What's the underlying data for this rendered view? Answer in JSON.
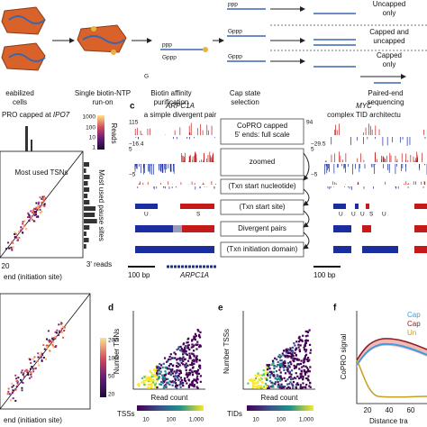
{
  "workflow": {
    "steps": [
      {
        "line1": "eabilized",
        "line2": "cells"
      },
      {
        "line1": "Single biotin-NTP",
        "line2": "run-on"
      },
      {
        "line1": "Biotin affinity",
        "line2": "purification"
      },
      {
        "line1": "Cap state",
        "line2": "selection"
      },
      {
        "line1": "Paired-end",
        "line2": "sequencing"
      }
    ],
    "outcomes": [
      {
        "line1": "Uncapped",
        "line2": "only"
      },
      {
        "line1": "Capped and",
        "line2": "uncapped"
      },
      {
        "line1": "Capped",
        "line2": "only"
      }
    ],
    "rna_labels": [
      "ppp",
      "G",
      "Gppp",
      "ppp",
      "Gppp",
      "Gppp"
    ]
  },
  "panel_b": {
    "title": "PRO capped at ",
    "title_gene": "IPO7",
    "colorbar_title": "Reads",
    "colorbar_ticks": [
      "1000",
      "100",
      "10",
      "1"
    ],
    "diag_label": "Most used TSNs",
    "side_label": "Most used pause sites",
    "side_axis": "3' reads",
    "x_tick": "20",
    "x_label": "end (initiation site)"
  },
  "panel_c": {
    "letter": "c",
    "left_gene": "ARPC1A",
    "left_sub": "a simple divergent pair",
    "right_gene": "MYC",
    "right_sub": "complex TID architectu",
    "rows": [
      "CoPRO capped\n5' ends: full scale",
      "zoomed",
      "(Txn start nucleotide)",
      "(Txn start site)",
      "Divergent pairs",
      "(Txn initiation domain)"
    ],
    "left_scale": [
      "115",
      "−16.4",
      "5",
      "−5"
    ],
    "right_scale": [
      "94",
      "−29.5",
      "5",
      "−5"
    ],
    "left_tss": [
      "U",
      "S"
    ],
    "right_tss": [
      "U",
      "U",
      "U",
      "S",
      "U"
    ],
    "scalebar": "100 bp",
    "scalebar_right": "100 bp",
    "gene_track": "ARPC1A"
  },
  "panel_bl": {
    "colorbar_ticks": [
      "200",
      "100",
      "50",
      "20"
    ],
    "x_label": "end (initiation site)"
  },
  "panel_d": {
    "letter": "d",
    "ylabel": "Number TSNs",
    "xlabel": "Read count",
    "legend": "TSSs",
    "colorbar_ticks": [
      "10",
      "100",
      "1,000"
    ]
  },
  "panel_e": {
    "letter": "e",
    "ylabel": "Number TSSs",
    "xlabel": "Read count",
    "legend": "TIDs",
    "colorbar_ticks": [
      "10",
      "100",
      "1,000"
    ]
  },
  "panel_f": {
    "letter": "f",
    "ylabel": "CoPRO signal",
    "xlabel": "Distance tra",
    "xticks": [
      "20",
      "40",
      "60"
    ],
    "legend": [
      "Cap",
      "Cap",
      "Un"
    ]
  }
}
